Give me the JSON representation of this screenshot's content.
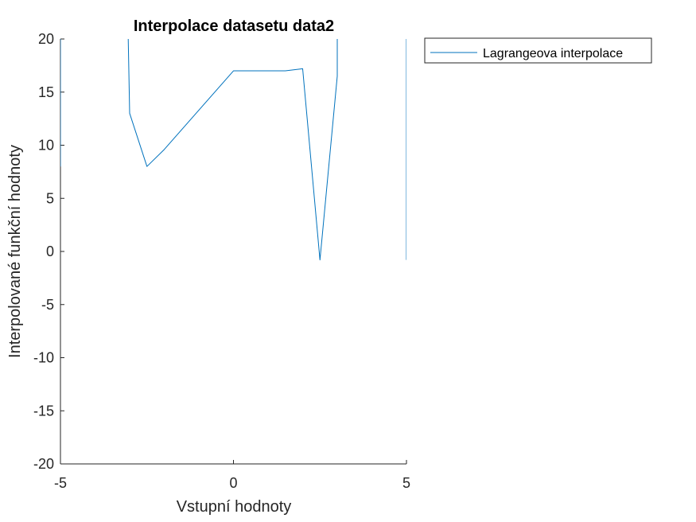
{
  "chart_data": {
    "type": "line",
    "title": "Interpolace datasetu data2",
    "xlabel": "Vstupní hodnoty",
    "ylabel": "Interpolované funkční hodnoty",
    "xlim": [
      -5,
      5
    ],
    "ylim": [
      -20,
      20
    ],
    "xticks": [
      -5,
      0,
      5
    ],
    "yticks": [
      -20,
      -15,
      -10,
      -5,
      0,
      5,
      10,
      15,
      20
    ],
    "grid": false,
    "legend_position": "outside-top-right",
    "series": [
      {
        "name": "Lagrangeova interpolace",
        "color": "#0072BD",
        "x": [
          -5,
          -5,
          -5,
          -3.1,
          -3,
          -2.5,
          -2,
          0,
          1.5,
          2,
          2.5,
          3,
          3,
          3,
          5,
          5
        ],
        "y": [
          8,
          20,
          30,
          30,
          13,
          8,
          9.6,
          17,
          17,
          17.2,
          -0.8,
          16.5,
          20,
          30,
          20,
          -0.8
        ]
      }
    ]
  }
}
